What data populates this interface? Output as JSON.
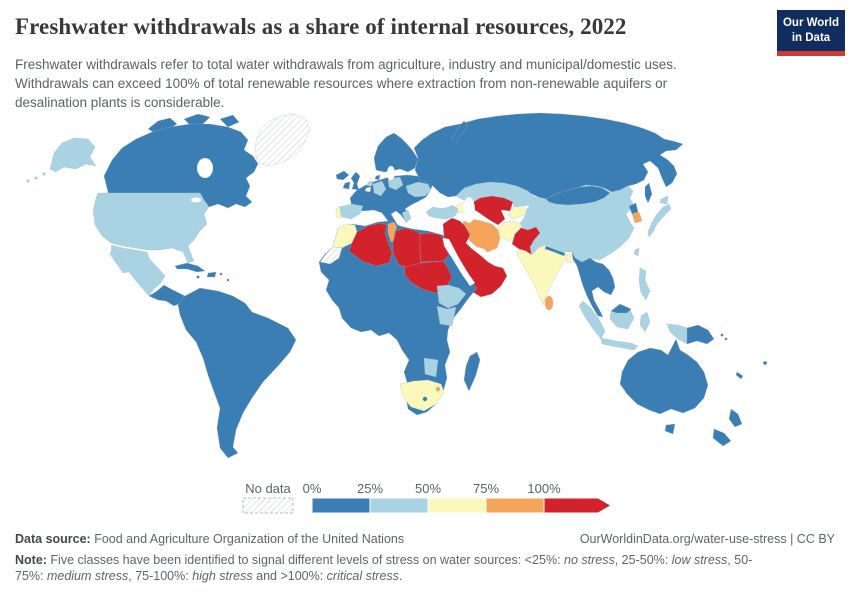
{
  "header": {
    "title": "Freshwater withdrawals as a share of internal resources, 2022",
    "subtitle": "Freshwater withdrawals refer to total water withdrawals from agriculture, industry and municipal/domestic uses. Withdrawals can exceed 100% of total renewable resources where extraction from non-renewable aquifers or desalination plants is considerable.",
    "logo": {
      "line1": "Our World",
      "line2": "in Data"
    }
  },
  "legend": {
    "no_data_label": "No data",
    "ticks": [
      "0%",
      "25%",
      "50%",
      "75%",
      "100%"
    ]
  },
  "colors": {
    "no_stress": "#3b7eb4",
    "low_stress": "#a9d2e3",
    "medium_stress": "#fbf8bc",
    "high_stress": "#f5a55b",
    "critical_stress": "#d2222b",
    "logo_background": "#112c5f",
    "logo_accent": "#cc3b33"
  },
  "map": {
    "regions": {
      "greenland": "no_data",
      "arctic-islands": "no_stress",
      "canada": "no_stress",
      "alaska": "low_stress",
      "aleutian-islands": "low_stress",
      "usa": "low_stress",
      "mexico": "low_stress",
      "central-america": "no_stress",
      "cuba": "no_stress",
      "hispaniola": "no_stress",
      "caribbean-islands": "no_stress",
      "south-america": "no_stress",
      "iceland": "no_stress",
      "united-kingdom": "no_stress",
      "ireland": "no_stress",
      "scandinavia": "no_stress",
      "denmark": "no_stress",
      "europe-mainland": "no_stress",
      "germany": "low_stress",
      "netherlands": "low_stress",
      "belgium": "medium_stress",
      "poland": "low_stress",
      "ukraine": "low_stress",
      "greece": "low_stress",
      "spain": "low_stress",
      "portugal": "medium_stress",
      "russia": "no_stress",
      "kazakhstan": "low_stress",
      "turkmenistan-uzbekistan": "critical_stress",
      "kyrgyzstan-tajikistan": "medium_stress",
      "turkey": "low_stress",
      "caucasus": "medium_stress",
      "china": "low_stress",
      "mongolia": "no_stress",
      "north-korea": "no_stress",
      "south-korea": "high_stress",
      "japan": "low_stress",
      "taiwan": "low_stress",
      "afghanistan": "medium_stress",
      "pakistan": "critical_stress",
      "india": "medium_stress",
      "nepal-bhutan": "no_stress",
      "bangladesh": "medium_stress",
      "sri-lanka": "high_stress",
      "iran": "high_stress",
      "middle-east": "critical_stress",
      "africa-mainland": "no_stress",
      "morocco": "medium_stress",
      "western-sahara": "no_data",
      "algeria": "critical_stress",
      "tunisia": "high_stress",
      "libya": "critical_stress",
      "egypt": "critical_stress",
      "sudan": "critical_stress",
      "ethiopia": "low_stress",
      "kenya": "low_stress",
      "zimbabwe": "low_stress",
      "south-africa": "medium_stress",
      "lesotho": "no_stress",
      "swaziland": "high_stress",
      "madagascar": "no_stress",
      "southeast-asia": "no_stress",
      "malaysia": "no_stress",
      "borneo": "low_stress",
      "sumatra": "low_stress",
      "java": "low_stress",
      "sulawesi": "low_stress",
      "philippines": "low_stress",
      "west-papua": "low_stress",
      "papua-new-guinea": "no_stress",
      "solomon-islands": "no_stress",
      "fiji": "no_stress",
      "new-caledonia": "no_stress",
      "australia": "no_stress",
      "tasmania": "no_stress",
      "new-zealand": "no_stress"
    }
  },
  "footer": {
    "datasource_label": "Data source:",
    "datasource_value": " Food and Agriculture Organization of the United Nations",
    "attribution": "OurWorldinData.org/water-use-stress | CC BY",
    "note_label": "Note:",
    "note_segments": [
      {
        "text": " Five classes have been identified to signal different levels of stress on water sources: <25%: ",
        "italic": false
      },
      {
        "text": "no stress",
        "italic": true
      },
      {
        "text": ", 25-50%: ",
        "italic": false
      },
      {
        "text": "low stress",
        "italic": true
      },
      {
        "text": ", 50-75%: ",
        "italic": false
      },
      {
        "text": "medium stress",
        "italic": true
      },
      {
        "text": ", 75-100%: ",
        "italic": false
      },
      {
        "text": "high stress",
        "italic": true
      },
      {
        "text": " and >100%: ",
        "italic": false
      },
      {
        "text": "critical stress",
        "italic": true
      },
      {
        "text": ".",
        "italic": false
      }
    ]
  }
}
